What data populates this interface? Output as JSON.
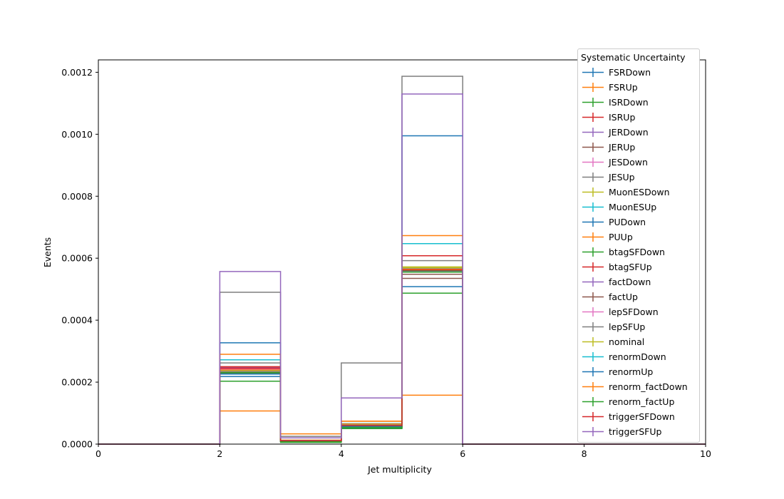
{
  "chart_data": {
    "type": "step",
    "xlabel": "Jet multiplicity",
    "ylabel": "Events",
    "xlim": [
      0,
      10
    ],
    "ylim": [
      0,
      0.00124
    ],
    "xticks": [
      "0",
      "2",
      "4",
      "6",
      "8",
      "10"
    ],
    "yticks": [
      "0.0000",
      "0.0002",
      "0.0004",
      "0.0006",
      "0.0008",
      "0.0010",
      "0.0012"
    ],
    "bin_edges": [
      0,
      1,
      2,
      3,
      4,
      5,
      6,
      7,
      8,
      9,
      10
    ],
    "legend_title": "Systematic Uncertainty",
    "legend_position": "upper right",
    "series": [
      {
        "name": "FSRDown",
        "color": "#1f77b4",
        "values": [
          0,
          0,
          0.000218,
          8.5e-06,
          5.3e-05,
          0.000548,
          0,
          0,
          0,
          0
        ]
      },
      {
        "name": "FSRUp",
        "color": "#ff7f0e",
        "values": [
          0,
          0,
          0.000107,
          3.3e-05,
          7.4e-05,
          0.000158,
          0,
          0,
          0,
          0
        ]
      },
      {
        "name": "ISRDown",
        "color": "#2ca02c",
        "values": [
          0,
          0,
          0.000203,
          5.5e-06,
          5e-05,
          0.000487,
          0,
          0,
          0,
          0
        ]
      },
      {
        "name": "ISRUp",
        "color": "#d62728",
        "values": [
          0,
          0,
          0.000241,
          9.5e-06,
          5.8e-05,
          0.00056,
          0,
          0,
          0,
          0
        ]
      },
      {
        "name": "JERDown",
        "color": "#9467bd",
        "values": [
          0,
          0,
          0.000247,
          1.1e-05,
          6e-05,
          0.000568,
          0,
          0,
          0,
          0
        ]
      },
      {
        "name": "JERUp",
        "color": "#8c564b",
        "values": [
          0,
          0,
          0.000234,
          9.5e-06,
          5.7e-05,
          0.000548,
          0,
          0,
          0,
          0
        ]
      },
      {
        "name": "JESDown",
        "color": "#e377c2",
        "values": [
          0,
          0,
          0.00024,
          1e-05,
          5.8e-05,
          0.000558,
          0,
          0,
          0,
          0
        ]
      },
      {
        "name": "JESUp",
        "color": "#7f7f7f",
        "values": [
          0,
          0,
          0.00049,
          2.5e-05,
          0.000262,
          0.001187,
          0,
          0,
          0,
          0
        ]
      },
      {
        "name": "MuonESDown",
        "color": "#bcbd22",
        "values": [
          0,
          0,
          0.000237,
          1e-05,
          6.2e-05,
          0.000572,
          0,
          0,
          0,
          0
        ]
      },
      {
        "name": "MuonESUp",
        "color": "#17becf",
        "values": [
          0,
          0,
          0.000272,
          1.2e-05,
          6.6e-05,
          0.000647,
          0,
          0,
          0,
          0
        ]
      },
      {
        "name": "PUDown",
        "color": "#1f77b4",
        "values": [
          0,
          0,
          0.000327,
          1.2e-05,
          6.3e-05,
          0.000995,
          0,
          0,
          0,
          0
        ]
      },
      {
        "name": "PUUp",
        "color": "#ff7f0e",
        "values": [
          0,
          0,
          0.00029,
          1.3e-05,
          7.4e-05,
          0.000673,
          0,
          0,
          0,
          0
        ]
      },
      {
        "name": "btagSFDown",
        "color": "#2ca02c",
        "values": [
          0,
          0,
          0.000231,
          8.5e-06,
          5.5e-05,
          0.00056,
          0,
          0,
          0,
          0
        ]
      },
      {
        "name": "btagSFUp",
        "color": "#d62728",
        "values": [
          0,
          0,
          0.00025,
          1.1e-05,
          6.2e-05,
          0.000608,
          0,
          0,
          0,
          0
        ]
      },
      {
        "name": "factDown",
        "color": "#9467bd",
        "values": [
          0,
          0,
          0.000235,
          1e-05,
          5.9e-05,
          0.000556,
          0,
          0,
          0,
          0
        ]
      },
      {
        "name": "factUp",
        "color": "#8c564b",
        "values": [
          0,
          0,
          0.000229,
          9.5e-06,
          5.6e-05,
          0.000535,
          0,
          0,
          0,
          0
        ]
      },
      {
        "name": "lepSFDown",
        "color": "#e377c2",
        "values": [
          0,
          0,
          0.000244,
          1.1e-05,
          6e-05,
          0.000563,
          0,
          0,
          0,
          0
        ]
      },
      {
        "name": "lepSFUp",
        "color": "#7f7f7f",
        "values": [
          0,
          0,
          0.000262,
          1.2e-05,
          6.4e-05,
          0.000592,
          0,
          0,
          0,
          0
        ]
      },
      {
        "name": "nominal",
        "color": "#bcbd22",
        "values": [
          0,
          0,
          0.000236,
          1e-05,
          6.1e-05,
          0.00057,
          0,
          0,
          0,
          0
        ]
      },
      {
        "name": "renormDown",
        "color": "#17becf",
        "values": [
          0,
          0,
          0.000238,
          1e-05,
          6.1e-05,
          0.000566,
          0,
          0,
          0,
          0
        ]
      },
      {
        "name": "renormUp",
        "color": "#1f77b4",
        "values": [
          0,
          0,
          0.000226,
          9.5e-06,
          5.7e-05,
          0.000508,
          0,
          0,
          0,
          0
        ]
      },
      {
        "name": "renorm_factDown",
        "color": "#ff7f0e",
        "values": [
          0,
          0,
          0.000239,
          1.1e-05,
          6.5e-05,
          0.000565,
          0,
          0,
          0,
          0
        ]
      },
      {
        "name": "renorm_factUp",
        "color": "#2ca02c",
        "values": [
          0,
          0,
          0.00023,
          8.5e-06,
          5.4e-05,
          0.000555,
          0,
          0,
          0,
          0
        ]
      },
      {
        "name": "triggerSFDown",
        "color": "#d62728",
        "values": [
          0,
          0,
          0.000245,
          1.1e-05,
          6e-05,
          0.000562,
          0,
          0,
          0,
          0
        ]
      },
      {
        "name": "triggerSFUp",
        "color": "#9467bd",
        "values": [
          0,
          0,
          0.000557,
          2e-05,
          0.000149,
          0.00113,
          0,
          0,
          0,
          0
        ]
      }
    ]
  }
}
